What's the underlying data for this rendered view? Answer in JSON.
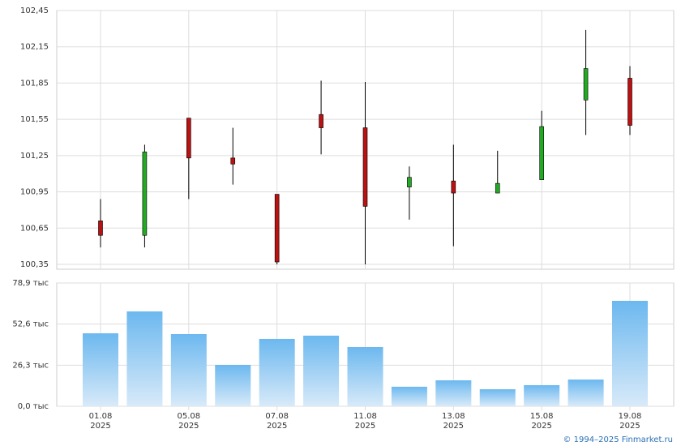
{
  "chart_data": [
    {
      "type": "candlestick",
      "categories": [
        {
          "date": "01.08",
          "year": "2025"
        },
        null,
        {
          "date": "05.08",
          "year": "2025"
        },
        null,
        {
          "date": "07.08",
          "year": "2025"
        },
        null,
        {
          "date": "11.08",
          "year": "2025"
        },
        null,
        {
          "date": "13.08",
          "year": "2025"
        },
        null,
        {
          "date": "15.08",
          "year": "2025"
        },
        null,
        {
          "date": "19.08",
          "year": "2025"
        }
      ],
      "open": [
        100.71,
        100.59,
        101.56,
        101.23,
        100.93,
        101.59,
        101.48,
        100.99,
        101.04,
        100.94,
        101.05,
        101.71,
        101.89
      ],
      "high": [
        100.89,
        101.34,
        101.56,
        101.48,
        100.93,
        101.87,
        101.86,
        101.16,
        101.34,
        101.29,
        101.62,
        102.29,
        101.99
      ],
      "low": [
        100.49,
        100.49,
        100.89,
        101.01,
        100.35,
        101.26,
        100.35,
        100.72,
        100.5,
        100.94,
        101.05,
        101.42,
        101.42
      ],
      "close": [
        100.59,
        101.28,
        101.23,
        101.18,
        100.37,
        101.48,
        100.83,
        101.07,
        100.94,
        101.02,
        101.49,
        101.97,
        101.5
      ],
      "up_color": "#22aa22",
      "down_color": "#bb1111",
      "grid": true,
      "ylim": [
        100.35,
        102.45
      ],
      "yticks": [
        {
          "value": 100.35,
          "label": "100,35"
        },
        {
          "value": 100.65,
          "label": "100,65"
        },
        {
          "value": 100.95,
          "label": "100,95"
        },
        {
          "value": 101.25,
          "label": "101,25"
        },
        {
          "value": 101.55,
          "label": "101,55"
        },
        {
          "value": 101.85,
          "label": "101,85"
        },
        {
          "value": 102.15,
          "label": "102,15"
        },
        {
          "value": 102.45,
          "label": "102,45"
        }
      ]
    },
    {
      "type": "bar",
      "values": [
        46.7,
        60.7,
        46.2,
        26.5,
        43.1,
        45.2,
        37.9,
        12.5,
        16.6,
        10.9,
        13.5,
        17.1,
        67.5
      ],
      "color": "#6cb8ef",
      "grid": true,
      "ylim": [
        0,
        78.9
      ],
      "yticks": [
        {
          "value": 0,
          "label": "0,0 тыс"
        },
        {
          "value": 26.3,
          "label": "26,3 тыс"
        },
        {
          "value": 52.6,
          "label": "52,6 тыс"
        },
        {
          "value": 78.9,
          "label": "78,9 тыс"
        }
      ]
    }
  ],
  "footer": {
    "credit": "© 1994–2025 Finmarket.ru"
  }
}
